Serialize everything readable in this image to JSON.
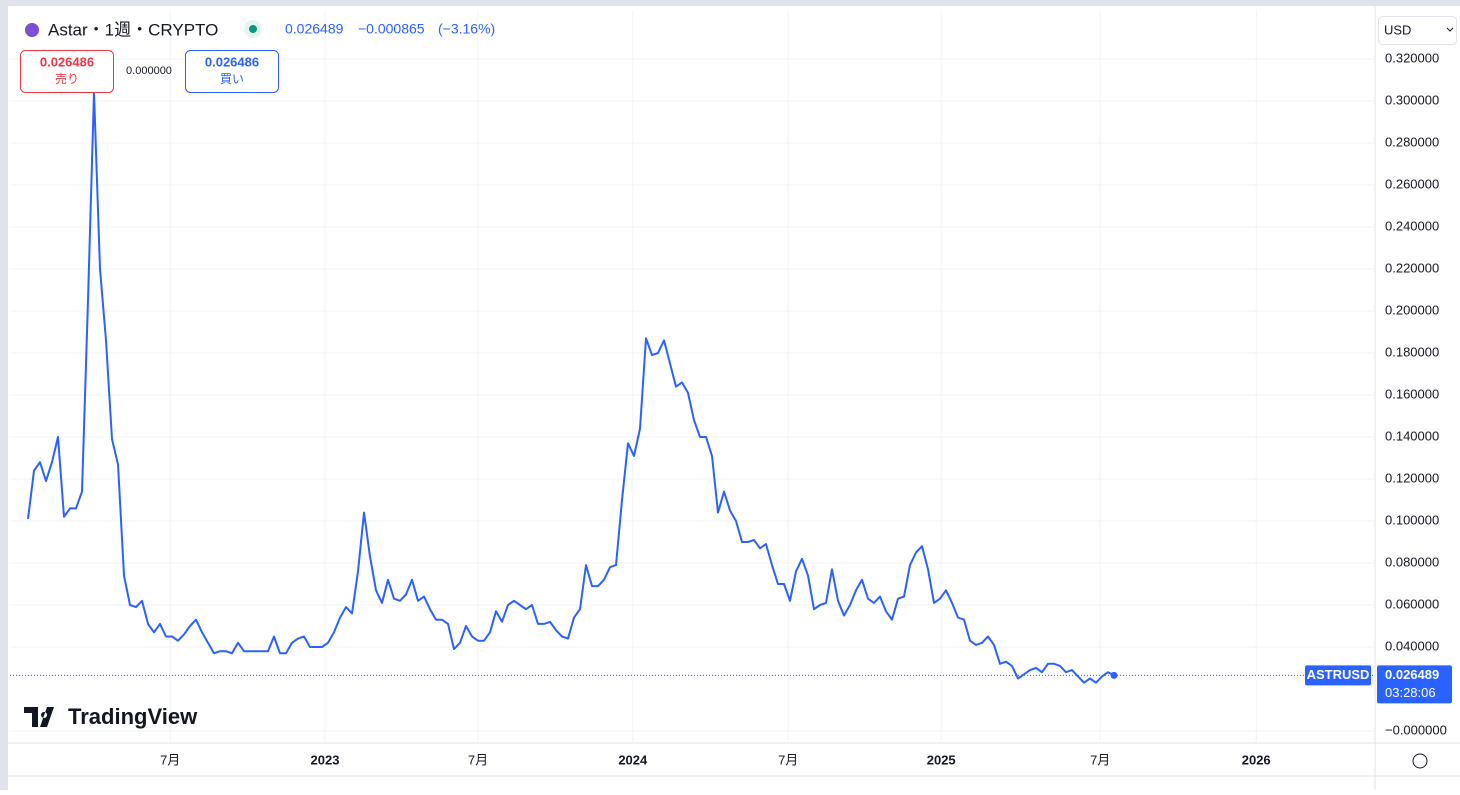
{
  "header": {
    "symbol": "Astar・1週・CRYPTO",
    "change": "−0.000865",
    "change_pct": "(−3.16%)"
  },
  "trade": {
    "sell_price": "0.026486",
    "sell_label": "売り",
    "spread": "0.000000",
    "buy_price": "0.026486",
    "buy_label": "買い"
  },
  "currency": "USD",
  "logo": "TradingView",
  "countdown": "03:28:06",
  "chart_data": {
    "type": "line",
    "series": [
      {
        "name": "ASTRUSD",
        "color": "#2962ff",
        "values": [
          0.101,
          0.124,
          0.128,
          0.119,
          0.128,
          0.14,
          0.102,
          0.106,
          0.106,
          0.114,
          0.205,
          0.304,
          0.22,
          0.186,
          0.139,
          0.127,
          0.074,
          0.06,
          0.059,
          0.062,
          0.051,
          0.047,
          0.051,
          0.045,
          0.045,
          0.043,
          0.046,
          0.05,
          0.053,
          0.047,
          0.042,
          0.037,
          0.038,
          0.038,
          0.037,
          0.042,
          0.038,
          0.038,
          0.038,
          0.038,
          0.038,
          0.045,
          0.037,
          0.037,
          0.042,
          0.044,
          0.045,
          0.04,
          0.04,
          0.04,
          0.042,
          0.047,
          0.054,
          0.059,
          0.056,
          0.076,
          0.104,
          0.083,
          0.067,
          0.061,
          0.072,
          0.063,
          0.062,
          0.065,
          0.072,
          0.062,
          0.064,
          0.058,
          0.053,
          0.053,
          0.051,
          0.039,
          0.042,
          0.05,
          0.045,
          0.043,
          0.043,
          0.047,
          0.057,
          0.052,
          0.06,
          0.062,
          0.06,
          0.058,
          0.06,
          0.051,
          0.051,
          0.052,
          0.048,
          0.045,
          0.044,
          0.054,
          0.058,
          0.079,
          0.069,
          0.069,
          0.072,
          0.078,
          0.079,
          0.11,
          0.137,
          0.131,
          0.144,
          0.187,
          0.179,
          0.18,
          0.186,
          0.175,
          0.164,
          0.166,
          0.161,
          0.148,
          0.14,
          0.14,
          0.131,
          0.104,
          0.114,
          0.105,
          0.1,
          0.09,
          0.09,
          0.091,
          0.087,
          0.089,
          0.079,
          0.07,
          0.07,
          0.062,
          0.076,
          0.082,
          0.074,
          0.058,
          0.06,
          0.061,
          0.077,
          0.062,
          0.055,
          0.06,
          0.067,
          0.072,
          0.063,
          0.061,
          0.064,
          0.057,
          0.053,
          0.063,
          0.064,
          0.079,
          0.085,
          0.088,
          0.077,
          0.061,
          0.063,
          0.067,
          0.061,
          0.054,
          0.053,
          0.043,
          0.041,
          0.042,
          0.045,
          0.041,
          0.032,
          0.033,
          0.031,
          0.025,
          0.027,
          0.029,
          0.03,
          0.028,
          0.032,
          0.032,
          0.031,
          0.028,
          0.029,
          0.026,
          0.023,
          0.025,
          0.023,
          0.026,
          0.028,
          0.026489
        ]
      }
    ],
    "xlim": [
      -3,
      224.5
    ],
    "xticks": [
      {
        "value": 23.7,
        "label": "7月"
      },
      {
        "value": 49.5,
        "label": "2023"
      },
      {
        "value": 75,
        "label": "7月"
      },
      {
        "value": 100.8,
        "label": "2024"
      },
      {
        "value": 126.7,
        "label": "7月"
      },
      {
        "value": 152.2,
        "label": "2025"
      },
      {
        "value": 178.7,
        "label": "7月"
      },
      {
        "value": 204.7,
        "label": "2026"
      }
    ],
    "ylim": [
      -0.005714,
      0.343333
    ],
    "yticks": [
      {
        "value": 0,
        "label": "−0.000000"
      },
      {
        "value": 0.04,
        "label": "0.040000"
      },
      {
        "value": 0.06,
        "label": "0.060000"
      },
      {
        "value": 0.08,
        "label": "0.080000"
      },
      {
        "value": 0.1,
        "label": "0.100000"
      },
      {
        "value": 0.12,
        "label": "0.120000"
      },
      {
        "value": 0.14,
        "label": "0.140000"
      },
      {
        "value": 0.16,
        "label": "0.160000"
      },
      {
        "value": 0.18,
        "label": "0.180000"
      },
      {
        "value": 0.2,
        "label": "0.200000"
      },
      {
        "value": 0.22,
        "label": "0.220000"
      },
      {
        "value": 0.24,
        "label": "0.240000"
      },
      {
        "value": 0.26,
        "label": "0.260000"
      },
      {
        "value": 0.28,
        "label": "0.280000"
      },
      {
        "value": 0.3,
        "label": "0.300000"
      },
      {
        "value": 0.32,
        "label": "0.320000"
      }
    ],
    "grid": true
  }
}
